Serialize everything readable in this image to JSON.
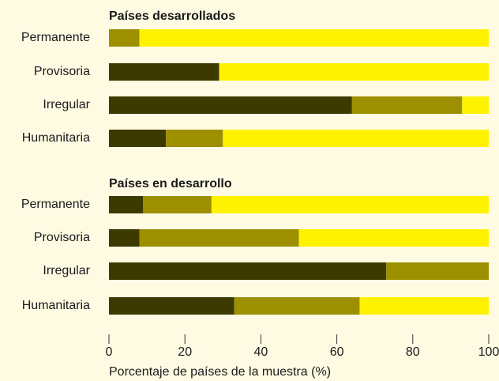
{
  "chart_data": [
    {
      "type": "stacked-bar",
      "title": "Países desarrollados",
      "categories": [
        "Permanente",
        "Provisoria",
        "Irregular",
        "Humanitaria"
      ],
      "series": [
        {
          "color": "#3d3a00",
          "values": [
            0,
            29,
            64,
            15
          ]
        },
        {
          "color": "#9c8f00",
          "values": [
            8,
            0,
            29,
            15
          ]
        },
        {
          "color": "#fff200",
          "values": [
            92,
            71,
            7,
            70
          ]
        }
      ],
      "xlim": [
        0,
        100
      ]
    },
    {
      "type": "stacked-bar",
      "title": "Países en desarrollo",
      "categories": [
        "Permanente",
        "Provisoria",
        "Irregular",
        "Humanitaria"
      ],
      "series": [
        {
          "color": "#3d3a00",
          "values": [
            9,
            8,
            73,
            33
          ]
        },
        {
          "color": "#9c8f00",
          "values": [
            18,
            42,
            27,
            33
          ]
        },
        {
          "color": "#fff200",
          "values": [
            73,
            50,
            0,
            34
          ]
        }
      ],
      "xlim": [
        0,
        100
      ],
      "xticks": [
        0,
        20,
        40,
        60,
        80,
        100
      ],
      "xlabel": "Porcentaje de países de la muestra (%)"
    }
  ]
}
